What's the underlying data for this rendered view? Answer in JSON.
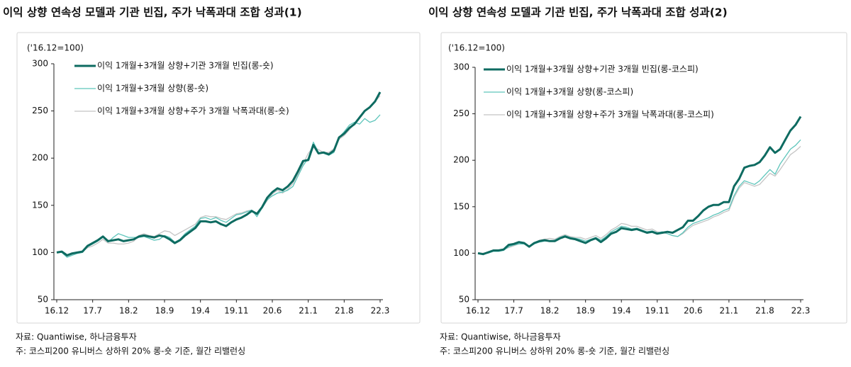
{
  "chart_data": [
    {
      "type": "line",
      "title": "이익 상향 연속성 모델과 기관 빈집, 주가 낙폭과대 조합 성과(1)",
      "y_unit": "('16.12=100)",
      "source": "자료: Quantiwise, 하나금융투자",
      "note": "주: 코스피200 유니버스 상하위 20% 롱-숏 기준, 월간 리밸런싱",
      "legend": "upper left",
      "ylim": [
        50,
        300
      ],
      "yticks": [
        50,
        100,
        150,
        200,
        250,
        300
      ],
      "categories": [
        "16.12",
        null,
        null,
        null,
        null,
        null,
        null,
        "17.7",
        null,
        null,
        null,
        null,
        null,
        null,
        "18.2",
        null,
        null,
        null,
        null,
        null,
        null,
        "18.9",
        null,
        null,
        null,
        null,
        null,
        null,
        "19.4",
        null,
        null,
        null,
        null,
        null,
        null,
        "19.11",
        null,
        null,
        null,
        null,
        null,
        null,
        "20.6",
        null,
        null,
        null,
        null,
        null,
        null,
        "21.1",
        null,
        null,
        null,
        null,
        null,
        null,
        "21.8",
        null,
        null,
        null,
        null,
        null,
        null,
        "22.3"
      ],
      "series": [
        {
          "name": "이익 1개월+3개월 상향+기관 3개월 빈집(롱-숏)",
          "color": "#0e6b61",
          "width": 3,
          "values": [
            100,
            101,
            97,
            99,
            100,
            101,
            107,
            110,
            113,
            117,
            112,
            113,
            114,
            112,
            113,
            114,
            117,
            118,
            117,
            116,
            118,
            117,
            114,
            110,
            113,
            118,
            122,
            126,
            133,
            133,
            132,
            133,
            130,
            128,
            132,
            135,
            137,
            140,
            144,
            141,
            148,
            158,
            164,
            168,
            166,
            170,
            176,
            186,
            197,
            198,
            214,
            205,
            206,
            204,
            208,
            222,
            226,
            232,
            236,
            243,
            250,
            254,
            260,
            270
          ]
        },
        {
          "name": "이익 1개월+3개월 상향(롱-숏)",
          "color": "#5ec5bb",
          "width": 1.3,
          "values": [
            100,
            100,
            95,
            97,
            99,
            100,
            106,
            109,
            112,
            116,
            111,
            116,
            120,
            118,
            116,
            116,
            116,
            117,
            115,
            113,
            114,
            118,
            116,
            111,
            114,
            120,
            124,
            128,
            136,
            137,
            135,
            137,
            134,
            132,
            136,
            140,
            141,
            143,
            145,
            138,
            147,
            156,
            160,
            163,
            164,
            166,
            170,
            181,
            192,
            200,
            217,
            206,
            205,
            203,
            206,
            222,
            228,
            235,
            238,
            236,
            242,
            238,
            240,
            246
          ]
        },
        {
          "name": "이익 1개월+3개월 상향+주가 3개월 낙폭과대(롱-숏)",
          "color": "#c4c4c4",
          "width": 1.3,
          "values": [
            100,
            101,
            96,
            98,
            99,
            101,
            105,
            107,
            110,
            114,
            110,
            110,
            109,
            109,
            110,
            112,
            118,
            120,
            118,
            117,
            120,
            123,
            122,
            118,
            121,
            124,
            127,
            130,
            137,
            139,
            138,
            138,
            136,
            135,
            138,
            141,
            142,
            144,
            145,
            140,
            147,
            155,
            162,
            166,
            163,
            167,
            173,
            183,
            194,
            205,
            212,
            209,
            206,
            206,
            210,
            220,
            224,
            230,
            236,
            244,
            250,
            254,
            260,
            266
          ]
        }
      ]
    },
    {
      "type": "line",
      "title": "이익 상향 연속성 모델과 기관 빈집, 주가 낙폭과대 조합 성과(2)",
      "y_unit": "('16.12=100)",
      "source": "자료: Quantiwise, 하나금융투자",
      "note": "주: 코스피200 유니버스 상하위 20% 롱-숏 기준, 월간 리밸런싱",
      "legend": "upper left",
      "ylim": [
        50,
        300
      ],
      "yticks": [
        50,
        100,
        150,
        200,
        250,
        300
      ],
      "categories": [
        "16.12",
        null,
        null,
        null,
        null,
        null,
        null,
        "17.7",
        null,
        null,
        null,
        null,
        null,
        null,
        "18.2",
        null,
        null,
        null,
        null,
        null,
        null,
        "18.9",
        null,
        null,
        null,
        null,
        null,
        null,
        "19.4",
        null,
        null,
        null,
        null,
        null,
        null,
        "19.11",
        null,
        null,
        null,
        null,
        null,
        null,
        "20.6",
        null,
        null,
        null,
        null,
        null,
        null,
        "21.1",
        null,
        null,
        null,
        null,
        null,
        null,
        "21.8",
        null,
        null,
        null,
        null,
        null,
        null,
        "22.3"
      ],
      "series": [
        {
          "name": "이익 1개월+3개월 상향+기관 3개월 빈집(롱-코스피)",
          "color": "#0e6b61",
          "width": 3,
          "values": [
            100,
            99,
            101,
            103,
            103,
            104,
            109,
            110,
            112,
            111,
            107,
            111,
            113,
            114,
            113,
            113,
            116,
            118,
            116,
            115,
            113,
            111,
            114,
            116,
            112,
            116,
            121,
            123,
            127,
            126,
            125,
            126,
            124,
            122,
            123,
            121,
            122,
            123,
            122,
            125,
            128,
            135,
            135,
            140,
            146,
            150,
            152,
            152,
            155,
            155,
            172,
            180,
            192,
            194,
            195,
            198,
            205,
            214,
            208,
            212,
            222,
            232,
            238,
            247
          ]
        },
        {
          "name": "이익 1개월+3개월 상향(롱-코스피)",
          "color": "#5ec5bb",
          "width": 1.3,
          "values": [
            100,
            99,
            100,
            102,
            102,
            103,
            107,
            109,
            110,
            110,
            107,
            110,
            112,
            113,
            113,
            114,
            117,
            119,
            117,
            116,
            115,
            113,
            115,
            117,
            114,
            118,
            123,
            126,
            129,
            128,
            126,
            127,
            125,
            123,
            124,
            122,
            123,
            121,
            119,
            118,
            122,
            128,
            132,
            134,
            136,
            138,
            141,
            143,
            146,
            148,
            162,
            172,
            178,
            176,
            174,
            178,
            184,
            190,
            185,
            196,
            204,
            212,
            216,
            222
          ]
        },
        {
          "name": "이익 1개월+3개월 상향+주가 3개월 낙폭과대(롱-코스피)",
          "color": "#c4c4c4",
          "width": 1.3,
          "values": [
            100,
            100,
            101,
            102,
            103,
            104,
            106,
            108,
            110,
            111,
            108,
            111,
            114,
            115,
            116,
            115,
            118,
            120,
            118,
            117,
            117,
            115,
            117,
            119,
            116,
            120,
            125,
            128,
            132,
            131,
            129,
            129,
            127,
            125,
            126,
            123,
            122,
            121,
            119,
            118,
            121,
            126,
            130,
            132,
            134,
            136,
            139,
            141,
            144,
            146,
            160,
            170,
            176,
            174,
            172,
            174,
            180,
            186,
            183,
            190,
            198,
            206,
            210,
            215
          ]
        }
      ]
    }
  ]
}
